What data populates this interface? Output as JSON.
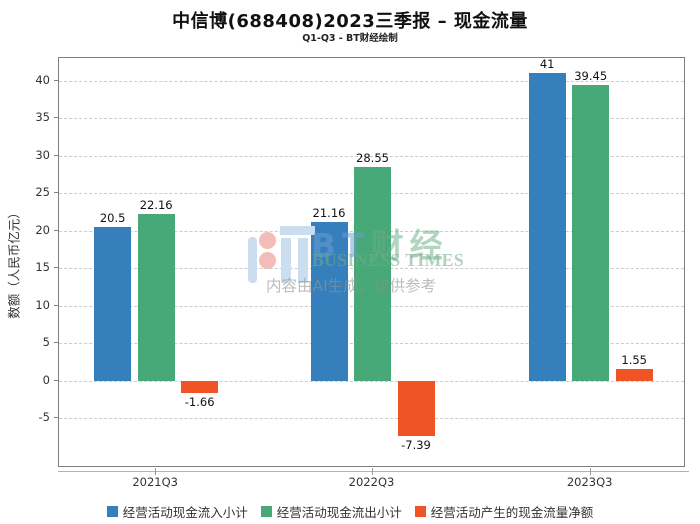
{
  "chart_data": {
    "type": "bar",
    "title": "中信博(688408)2023三季报 – 现金流量",
    "subtitle": "Q1-Q3 - BT财经绘制",
    "categories": [
      "2021Q3",
      "2022Q3",
      "2023Q3"
    ],
    "series": [
      {
        "name": "经营活动现金流入小计",
        "color": "#3580bc",
        "values": [
          20.5,
          21.16,
          41
        ]
      },
      {
        "name": "经营活动现金流出小计",
        "color": "#47a878",
        "values": [
          22.16,
          28.55,
          39.45
        ]
      },
      {
        "name": "经营活动产生的现金流量净额",
        "color": "#f05426",
        "values": [
          -1.66,
          -7.39,
          1.55
        ]
      }
    ],
    "labels": [
      [
        "20.5",
        "22.16",
        "-1.66"
      ],
      [
        "21.16",
        "28.55",
        "-7.39"
      ],
      [
        "41",
        "39.45",
        "1.55"
      ]
    ],
    "xlabel": "",
    "ylabel": "数额（人民币亿元）",
    "ylim": [
      -11.6,
      43
    ],
    "yticks": [
      40,
      35,
      30,
      25,
      20,
      15,
      10,
      5,
      0,
      -5
    ],
    "grid": "horizontal-dashed",
    "legend_position": "bottom"
  },
  "watermark": {
    "brand_bt": "BT",
    "brand_caijing": "财经",
    "brand_en": "BUSINESS TIMES",
    "disclaimer": "内容由AI生成，仅供参考",
    "logo_colors": {
      "bars": "#cadeef",
      "dots": "#f3bcb6"
    }
  }
}
